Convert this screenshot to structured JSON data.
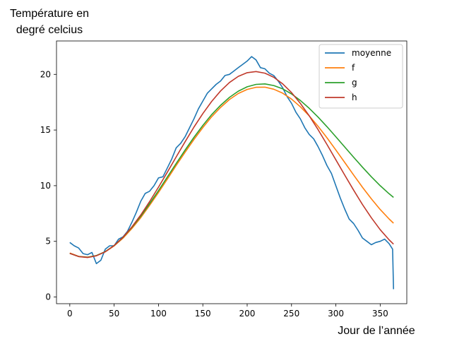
{
  "chart_data": {
    "type": "line",
    "ylabel_lines": [
      "Température en",
      "degré celcius"
    ],
    "xlabel": "Jour de l’année",
    "xlim": [
      -15,
      380
    ],
    "ylim": [
      -0.6,
      23.0
    ],
    "xticks": [
      0,
      50,
      100,
      150,
      200,
      250,
      300,
      350
    ],
    "yticks": [
      0,
      5,
      10,
      15,
      20
    ],
    "grid": false,
    "legend_position": "top-right",
    "series": [
      {
        "name": "moyenne",
        "color": "#1f77b4",
        "x": [
          0,
          5,
          10,
          15,
          20,
          25,
          30,
          35,
          40,
          45,
          50,
          55,
          60,
          65,
          70,
          75,
          80,
          85,
          90,
          95,
          100,
          105,
          110,
          115,
          120,
          125,
          130,
          135,
          140,
          145,
          150,
          155,
          160,
          165,
          170,
          175,
          180,
          185,
          190,
          195,
          200,
          205,
          210,
          215,
          220,
          225,
          230,
          235,
          240,
          245,
          250,
          255,
          260,
          265,
          270,
          275,
          280,
          285,
          290,
          295,
          300,
          305,
          310,
          315,
          320,
          325,
          330,
          335,
          340,
          345,
          350,
          355,
          360,
          364,
          365
        ],
        "y": [
          4.9,
          4.6,
          4.4,
          3.9,
          3.8,
          4.0,
          3.0,
          3.3,
          4.3,
          4.6,
          4.6,
          5.2,
          5.4,
          5.9,
          6.7,
          7.6,
          8.6,
          9.3,
          9.5,
          10.0,
          10.7,
          10.8,
          11.6,
          12.4,
          13.4,
          13.8,
          14.4,
          15.2,
          16.0,
          16.9,
          17.6,
          18.3,
          18.7,
          19.1,
          19.4,
          19.9,
          20.0,
          20.3,
          20.6,
          20.9,
          21.2,
          21.6,
          21.3,
          20.6,
          20.5,
          20.1,
          19.9,
          19.4,
          18.8,
          18.0,
          17.4,
          16.6,
          16.0,
          15.2,
          14.6,
          14.2,
          13.5,
          12.7,
          11.8,
          11.1,
          10.0,
          8.9,
          7.9,
          7.0,
          6.6,
          6.0,
          5.3,
          5.0,
          4.7,
          4.9,
          5.0,
          5.2,
          4.8,
          4.3,
          0.7
        ]
      },
      {
        "name": "f",
        "color": "#ff7f0e",
        "x": [
          0,
          10,
          20,
          30,
          40,
          50,
          60,
          70,
          80,
          90,
          100,
          110,
          120,
          130,
          140,
          150,
          160,
          170,
          180,
          190,
          200,
          210,
          220,
          230,
          240,
          250,
          260,
          270,
          280,
          290,
          300,
          310,
          320,
          330,
          340,
          350,
          360,
          365
        ],
        "y": [
          3.95,
          3.65,
          3.58,
          3.72,
          4.06,
          4.59,
          5.29,
          6.15,
          7.13,
          8.23,
          9.39,
          10.6,
          11.82,
          13.01,
          14.15,
          15.22,
          16.19,
          17.03,
          17.74,
          18.28,
          18.65,
          18.84,
          18.85,
          18.67,
          18.31,
          17.78,
          17.09,
          16.27,
          15.33,
          14.3,
          13.21,
          12.09,
          10.96,
          9.86,
          8.82,
          7.86,
          7.01,
          6.63
        ]
      },
      {
        "name": "g",
        "color": "#2ca02c",
        "x": [
          0,
          10,
          20,
          30,
          40,
          50,
          60,
          70,
          80,
          90,
          100,
          110,
          120,
          130,
          140,
          150,
          160,
          170,
          180,
          190,
          200,
          210,
          220,
          230,
          240,
          250,
          260,
          270,
          280,
          290,
          300,
          310,
          320,
          330,
          340,
          350,
          360,
          365
        ],
        "y": [
          3.92,
          3.64,
          3.57,
          3.72,
          4.08,
          4.63,
          5.36,
          6.25,
          7.26,
          8.38,
          9.56,
          10.78,
          12.0,
          13.2,
          14.34,
          15.41,
          16.38,
          17.22,
          17.93,
          18.49,
          18.88,
          19.1,
          19.14,
          19.0,
          18.7,
          18.24,
          17.65,
          16.95,
          16.16,
          15.3,
          14.4,
          13.48,
          12.56,
          11.66,
          10.8,
          10.0,
          9.28,
          8.95
        ]
      },
      {
        "name": "h",
        "color": "#c0392b",
        "x": [
          0,
          10,
          20,
          30,
          40,
          50,
          60,
          70,
          80,
          90,
          100,
          110,
          120,
          130,
          140,
          150,
          160,
          170,
          180,
          190,
          200,
          210,
          220,
          230,
          240,
          250,
          260,
          270,
          280,
          290,
          300,
          310,
          320,
          330,
          340,
          350,
          360,
          365
        ],
        "y": [
          3.92,
          3.63,
          3.55,
          3.7,
          4.06,
          4.62,
          5.37,
          6.29,
          7.37,
          8.57,
          9.87,
          11.22,
          12.59,
          13.95,
          15.26,
          16.48,
          17.57,
          18.51,
          19.27,
          19.82,
          20.15,
          20.25,
          20.11,
          19.74,
          19.15,
          18.36,
          17.39,
          16.27,
          15.03,
          13.7,
          12.33,
          10.95,
          9.6,
          8.31,
          7.12,
          6.05,
          5.14,
          4.75
        ]
      }
    ]
  }
}
